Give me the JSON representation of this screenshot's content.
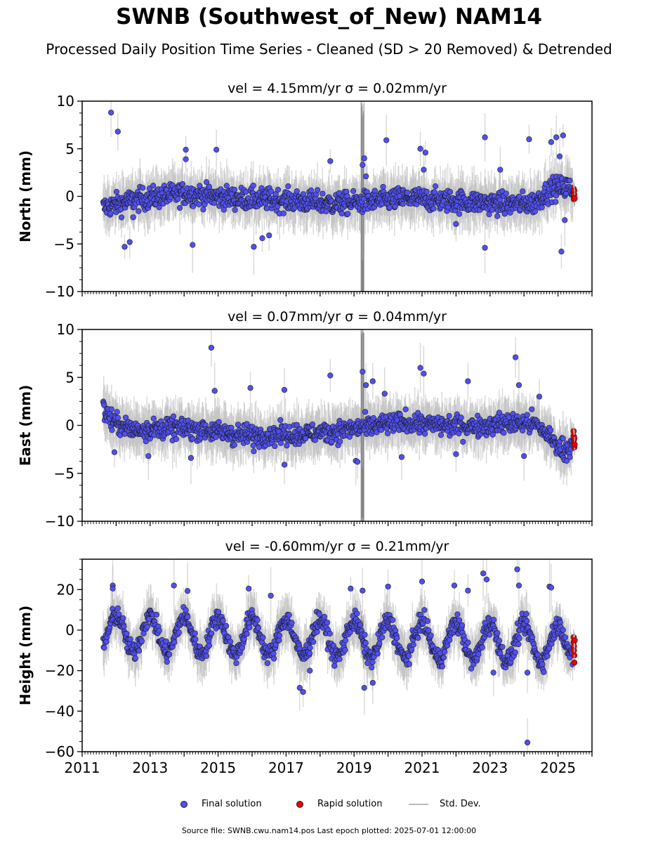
{
  "title": "SWNB (Southwest_of_New) NAM14",
  "subtitle": "Processed Daily Position Time Series - Cleaned (SD > 20 Removed) & Detrended",
  "footer": "Source file: SWNB.cwu.nam14.pos  Last epoch plotted: 2025-07-01 12:00:00",
  "legend": {
    "final": "Final solution",
    "rapid": "Rapid solution",
    "std": "Std. Dev."
  },
  "colors": {
    "final": "#5050f0",
    "rapid": "#ee0000",
    "std": "#b8b8b8",
    "marker_edge": "#1a1a1a"
  },
  "chart_data": [
    {
      "type": "scatter",
      "panel": "north",
      "title": "vel = 4.15mm/yr   σ = 0.02mm/yr",
      "ylabel": "North (mm)",
      "xlim": [
        2011,
        2026
      ],
      "ylim": [
        -10,
        10
      ],
      "yticks": [
        -10,
        -5,
        0,
        5,
        10
      ],
      "ytick_labels": [
        "−10",
        "−5",
        "0",
        "5",
        "10"
      ],
      "x_tick_labels_shown": false,
      "baseline": {
        "points": [
          [
            2011.6,
            -1.2
          ],
          [
            2012.5,
            -0.4
          ],
          [
            2014.0,
            0.3
          ],
          [
            2015.5,
            -0.2
          ],
          [
            2017.0,
            -0.4
          ],
          [
            2018.5,
            -0.8
          ],
          [
            2019.3,
            -0.6
          ],
          [
            2020.5,
            -0.2
          ],
          [
            2021.5,
            -0.4
          ],
          [
            2022.5,
            -0.6
          ],
          [
            2023.5,
            -0.8
          ],
          [
            2024.3,
            -0.7
          ],
          [
            2024.8,
            0.8
          ],
          [
            2025.3,
            1.0
          ],
          [
            2025.5,
            0.5
          ]
        ],
        "noise": 1.1
      },
      "outliers": [
        [
          2011.85,
          8.8
        ],
        [
          2012.05,
          6.8
        ],
        [
          2012.25,
          -5.3
        ],
        [
          2012.4,
          -4.8
        ],
        [
          2012.5,
          -2.2
        ],
        [
          2014.05,
          4.9
        ],
        [
          2014.05,
          3.9
        ],
        [
          2014.25,
          -5.1
        ],
        [
          2014.95,
          4.9
        ],
        [
          2016.05,
          -5.3
        ],
        [
          2016.3,
          -4.4
        ],
        [
          2016.5,
          -4.1
        ],
        [
          2018.3,
          3.7
        ],
        [
          2019.25,
          3.3
        ],
        [
          2019.3,
          4.0
        ],
        [
          2019.35,
          2.1
        ],
        [
          2019.95,
          5.9
        ],
        [
          2020.95,
          5.0
        ],
        [
          2021.1,
          4.6
        ],
        [
          2021.05,
          2.8
        ],
        [
          2022.0,
          -2.9
        ],
        [
          2022.85,
          6.2
        ],
        [
          2022.85,
          -5.4
        ],
        [
          2023.3,
          2.8
        ],
        [
          2024.15,
          6.0
        ],
        [
          2024.8,
          5.7
        ],
        [
          2024.95,
          6.2
        ],
        [
          2025.05,
          4.2
        ],
        [
          2025.15,
          6.4
        ],
        [
          2025.1,
          -5.8
        ],
        [
          2025.2,
          -2.5
        ]
      ],
      "rapid": [
        [
          2025.46,
          0.8
        ],
        [
          2025.46,
          0.4
        ],
        [
          2025.47,
          0.0
        ],
        [
          2025.47,
          -0.3
        ],
        [
          2025.48,
          0.6
        ],
        [
          2025.48,
          0.2
        ],
        [
          2025.49,
          -0.2
        ]
      ]
    },
    {
      "type": "scatter",
      "panel": "east",
      "title": "vel = 0.07mm/yr   σ = 0.04mm/yr",
      "ylabel": "East (mm)",
      "xlim": [
        2011,
        2026
      ],
      "ylim": [
        -10,
        10
      ],
      "yticks": [
        -10,
        -5,
        0,
        5,
        10
      ],
      "ytick_labels": [
        "−10",
        "−5",
        "0",
        "5",
        "10"
      ],
      "x_tick_labels_shown": false,
      "baseline": {
        "points": [
          [
            2011.6,
            1.8
          ],
          [
            2011.9,
            0.4
          ],
          [
            2012.5,
            -0.5
          ],
          [
            2013.5,
            -0.3
          ],
          [
            2014.5,
            -0.4
          ],
          [
            2015.5,
            -1.0
          ],
          [
            2016.5,
            -1.0
          ],
          [
            2017.5,
            -0.9
          ],
          [
            2018.5,
            -0.6
          ],
          [
            2019.5,
            -0.1
          ],
          [
            2020.5,
            0.3
          ],
          [
            2021.5,
            0.0
          ],
          [
            2022.5,
            -0.1
          ],
          [
            2023.5,
            0.2
          ],
          [
            2024.3,
            0.2
          ],
          [
            2024.7,
            -1.0
          ],
          [
            2025.1,
            -2.5
          ],
          [
            2025.5,
            -2.2
          ]
        ],
        "noise": 1.0
      },
      "outliers": [
        [
          2014.8,
          8.1
        ],
        [
          2014.9,
          3.6
        ],
        [
          2015.95,
          3.9
        ],
        [
          2016.05,
          -2.7
        ],
        [
          2016.95,
          3.7
        ],
        [
          2016.95,
          -4.1
        ],
        [
          2018.3,
          5.2
        ],
        [
          2019.05,
          -3.7
        ],
        [
          2019.1,
          -3.8
        ],
        [
          2019.25,
          5.6
        ],
        [
          2019.35,
          4.2
        ],
        [
          2019.55,
          4.6
        ],
        [
          2019.9,
          3.3
        ],
        [
          2020.4,
          -3.3
        ],
        [
          2020.95,
          6.0
        ],
        [
          2021.05,
          5.4
        ],
        [
          2022.0,
          -3.0
        ],
        [
          2022.35,
          4.6
        ],
        [
          2023.75,
          7.1
        ],
        [
          2023.85,
          4.2
        ],
        [
          2024.0,
          -3.2
        ],
        [
          2024.45,
          3.0
        ],
        [
          2011.95,
          -2.8
        ],
        [
          2012.95,
          -3.2
        ],
        [
          2014.2,
          -3.4
        ]
      ],
      "rapid": [
        [
          2025.46,
          -0.6
        ],
        [
          2025.46,
          -1.1
        ],
        [
          2025.47,
          -1.5
        ],
        [
          2025.47,
          -1.9
        ],
        [
          2025.48,
          -2.3
        ],
        [
          2025.48,
          -1.3
        ],
        [
          2025.49,
          -2.0
        ]
      ]
    },
    {
      "type": "scatter",
      "panel": "height",
      "title": "vel = -0.60mm/yr   σ = 0.21mm/yr",
      "ylabel": "Height (mm)",
      "xlim": [
        2011,
        2026
      ],
      "ylim": [
        -60,
        35
      ],
      "yticks": [
        -60,
        -40,
        -20,
        0,
        20
      ],
      "ytick_labels": [
        "−60",
        "−40",
        "−20",
        "0",
        "20"
      ],
      "x_tick_labels_shown": true,
      "xticks": [
        2011,
        2013,
        2015,
        2017,
        2019,
        2021,
        2023,
        2025
      ],
      "xtick_labels": [
        "2011",
        "2013",
        "2015",
        "2017",
        "2019",
        "2021",
        "2023",
        "2025"
      ],
      "baseline": {
        "seasonal_amplitude": 9,
        "seasonal_peak": 0.0,
        "offset": -4,
        "noise": 4.5
      },
      "outliers": [
        [
          2011.9,
          22.0
        ],
        [
          2011.9,
          20.5
        ],
        [
          2013.7,
          22.0
        ],
        [
          2014.1,
          19.3
        ],
        [
          2015.9,
          20.5
        ],
        [
          2016.55,
          17.0
        ],
        [
          2017.4,
          -28.5
        ],
        [
          2017.5,
          -30.5
        ],
        [
          2018.9,
          20.5
        ],
        [
          2019.25,
          19.5
        ],
        [
          2019.3,
          -28.5
        ],
        [
          2020.0,
          21.5
        ],
        [
          2021.0,
          24.0
        ],
        [
          2021.95,
          22.0
        ],
        [
          2022.35,
          19.5
        ],
        [
          2022.8,
          28.0
        ],
        [
          2022.9,
          25.0
        ],
        [
          2023.1,
          -21.0
        ],
        [
          2023.8,
          30.0
        ],
        [
          2023.85,
          22.0
        ],
        [
          2024.1,
          -55.5
        ],
        [
          2024.1,
          -21.0
        ],
        [
          2024.75,
          21.5
        ],
        [
          2024.8,
          21.0
        ],
        [
          2017.7,
          -20.0
        ],
        [
          2019.55,
          -26.0
        ]
      ],
      "rapid": [
        [
          2025.46,
          -3.5
        ],
        [
          2025.46,
          -6.0
        ],
        [
          2025.47,
          -8.0
        ],
        [
          2025.47,
          -10.0
        ],
        [
          2025.48,
          -12.5
        ],
        [
          2025.48,
          -16.0
        ],
        [
          2025.49,
          -5.0
        ]
      ]
    }
  ]
}
